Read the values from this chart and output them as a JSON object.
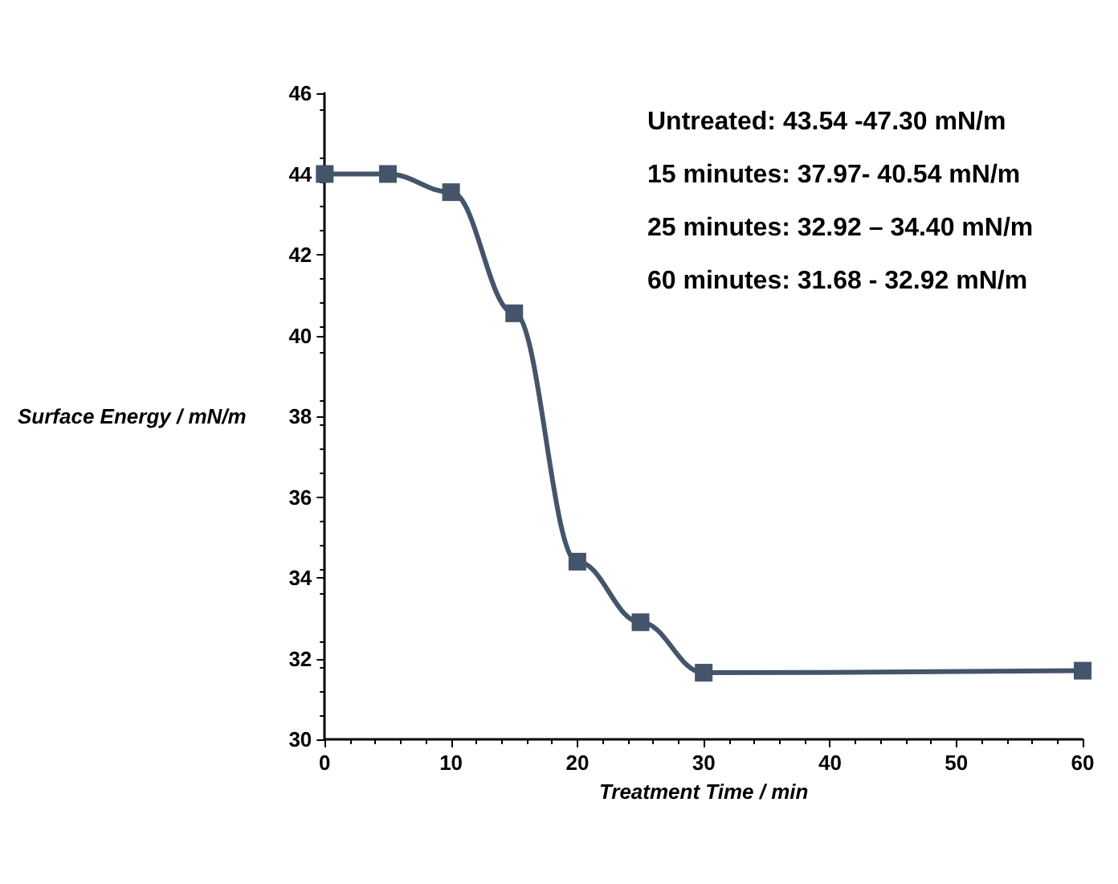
{
  "chart_data": {
    "type": "line",
    "xlabel": "Treatment Time / min",
    "ylabel": "Surface Energy / mN/m",
    "x": [
      0,
      5,
      10,
      15,
      20,
      25,
      30,
      60
    ],
    "series": [
      {
        "color": "#44546a",
        "values": [
          44,
          44,
          43.55,
          40.55,
          34.4,
          32.9,
          31.65,
          31.7
        ]
      }
    ],
    "xlim": [
      0,
      60
    ],
    "xticks": [
      0,
      10,
      20,
      30,
      40,
      50,
      60
    ],
    "ylim": [
      30,
      46
    ],
    "yticks": [
      30,
      32,
      34,
      36,
      38,
      40,
      42,
      44,
      46
    ],
    "marker": "square",
    "line_style": "solid",
    "grid": false,
    "annotations": [
      "Untreated: 43.54 -47.30 mN/m",
      "15 minutes: 37.97- 40.54 mN/m",
      "25 minutes: 32.92 – 34.40 mN/m",
      "60 minutes: 31.68 - 32.92 mN/m"
    ]
  }
}
